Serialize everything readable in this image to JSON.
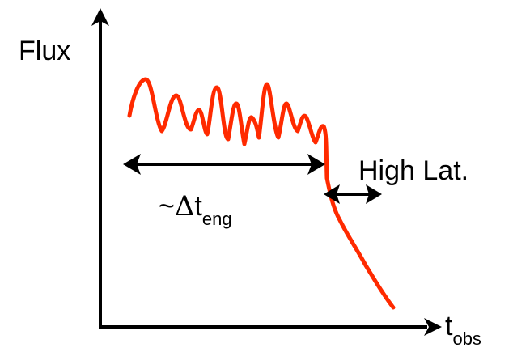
{
  "diagram": {
    "y_axis_label": "Flux",
    "x_axis_label": {
      "main": "t",
      "subscript": "obs"
    },
    "engine_label": {
      "prefix": "~",
      "delta": "Δ",
      "main": "t",
      "subscript": "eng"
    },
    "high_lat_label": "High Lat.",
    "curve_color": "#ff2a00",
    "axis_color": "#000000"
  }
}
